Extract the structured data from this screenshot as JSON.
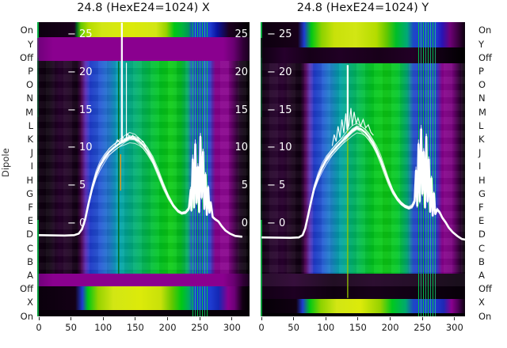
{
  "titles": {
    "left": "24.8 (HexE24=1024) X",
    "right": "24.8 (HexE24=1024) Y"
  },
  "y_axis": {
    "label": "Dipole",
    "rows": [
      "On",
      "Y",
      "Off",
      "P",
      "O",
      "N",
      "M",
      "L",
      "K",
      "J",
      "I",
      "H",
      "G",
      "F",
      "E",
      "D",
      "C",
      "B",
      "A",
      "Off",
      "X",
      "On"
    ]
  },
  "colors": {
    "purple_band": "#8a008f",
    "heat_yellow": "#d2e614",
    "heat_green": "#00c81e",
    "heat_teal": "#00a0aa",
    "heat_blue": "#1e3cd2",
    "heat_dark": "#16001a",
    "curve": "#ffffff",
    "text": "#1a1a1a",
    "background": "#ffffff"
  },
  "chart_data": {
    "type": "heatmap",
    "description": "Two dipole-scan spectrogram panels (X and Y) sharing row categories; each panel is a column-banded heatmap (dark purple / blue / teal / green / yellow) with bright ON/X rows, magenta OFF/Y bands, vertical green stripe artifacts near x=250-270, and an overlaid bundle of white beam-profile traces with a tall narrow spike and a noisy burst region.",
    "x_ticks": [
      0,
      50,
      100,
      150,
      200,
      250,
      300
    ],
    "x_range": [
      0,
      317
    ],
    "inner_y_ticks": {
      "values": [
        25,
        20,
        15,
        10,
        5,
        0
      ],
      "left_labels": [
        "− 25",
        "− 20",
        "− 15",
        "− 10",
        "− 5",
        "− 0"
      ],
      "right_labels": [
        "25",
        "20",
        "15",
        "10",
        "5",
        "0"
      ]
    },
    "rows_top_to_bottom": [
      "On",
      "Y",
      "Off",
      "P",
      "O",
      "N",
      "M",
      "L",
      "K",
      "J",
      "I",
      "H",
      "G",
      "F",
      "E",
      "D",
      "C",
      "B",
      "A",
      "Off",
      "X",
      "On"
    ],
    "panels": [
      {
        "title": "24.8 (HexE24=1024) X",
        "show_inner_right_labels": true,
        "curve": [
          [
            0,
            -1.5
          ],
          [
            40,
            -1.55
          ],
          [
            55,
            -1.5
          ],
          [
            62,
            -1.3
          ],
          [
            67,
            -0.7
          ],
          [
            72,
            0.6
          ],
          [
            77,
            2.6
          ],
          [
            83,
            4.8
          ],
          [
            89,
            6.5
          ],
          [
            95,
            7.7
          ],
          [
            102,
            8.7
          ],
          [
            109,
            9.5
          ],
          [
            117,
            10.1
          ],
          [
            125,
            10.6
          ],
          [
            133,
            11.0
          ],
          [
            141,
            11.4
          ],
          [
            149,
            11.3
          ],
          [
            156,
            10.9
          ],
          [
            162,
            10.4
          ],
          [
            169,
            9.6
          ],
          [
            177,
            8.4
          ],
          [
            185,
            6.8
          ],
          [
            193,
            5.1
          ],
          [
            201,
            3.6
          ],
          [
            209,
            2.4
          ],
          [
            216,
            1.7
          ],
          [
            222,
            1.4
          ],
          [
            228,
            1.5
          ],
          [
            233,
            2.0
          ],
          [
            236,
            4.5
          ],
          [
            237,
            1.8
          ],
          [
            239,
            8.5
          ],
          [
            241,
            2.2
          ],
          [
            243,
            10.5
          ],
          [
            245,
            2.8
          ],
          [
            247,
            7.5
          ],
          [
            249,
            1.6
          ],
          [
            251,
            11.5
          ],
          [
            253,
            3.5
          ],
          [
            255,
            9.5
          ],
          [
            257,
            2.0
          ],
          [
            259,
            6.5
          ],
          [
            261,
            1.2
          ],
          [
            263,
            4.8
          ],
          [
            265,
            1.5
          ],
          [
            267,
            2.8
          ],
          [
            270,
            0.9
          ],
          [
            274,
            0.6
          ],
          [
            279,
            0.3
          ],
          [
            284,
            -0.3
          ],
          [
            290,
            -0.9
          ],
          [
            297,
            -1.3
          ],
          [
            305,
            -1.6
          ],
          [
            316,
            -1.7
          ]
        ],
        "crest_trace": [
          [
            118,
            10.4
          ],
          [
            122,
            11.1
          ],
          [
            126,
            10.7
          ],
          [
            130,
            11.5
          ],
          [
            134,
            11.1
          ],
          [
            138,
            11.9
          ],
          [
            142,
            11.3
          ],
          [
            146,
            11.7
          ],
          [
            150,
            11.1
          ],
          [
            154,
            11.4
          ],
          [
            158,
            10.7
          ],
          [
            162,
            10.9
          ],
          [
            166,
            10.2
          ]
        ],
        "spikes": [
          {
            "x": 129,
            "from": 26.6,
            "to": 10.8
          },
          {
            "x": 136,
            "from": 21.3,
            "to": 11.0
          }
        ],
        "accent_lines": [
          {
            "x": 124,
            "from": 21.5,
            "to": -6.6,
            "color": "#006414"
          },
          {
            "x": 127,
            "from": 9.2,
            "to": 4.4,
            "color": "#ff9600"
          }
        ]
      },
      {
        "title": "24.8 (HexE24=1024) Y",
        "show_inner_right_labels": false,
        "curve": [
          [
            0,
            -1.8
          ],
          [
            45,
            -1.85
          ],
          [
            58,
            -1.8
          ],
          [
            64,
            -1.5
          ],
          [
            68,
            -0.6
          ],
          [
            72,
            0.9
          ],
          [
            77,
            2.9
          ],
          [
            82,
            4.7
          ],
          [
            88,
            6.2
          ],
          [
            94,
            7.4
          ],
          [
            101,
            8.5
          ],
          [
            109,
            9.4
          ],
          [
            117,
            10.2
          ],
          [
            125,
            10.9
          ],
          [
            133,
            11.6
          ],
          [
            141,
            12.3
          ],
          [
            148,
            12.7
          ],
          [
            155,
            12.5
          ],
          [
            161,
            12.1
          ],
          [
            167,
            11.5
          ],
          [
            173,
            10.7
          ],
          [
            179,
            9.7
          ],
          [
            185,
            8.5
          ],
          [
            191,
            7.1
          ],
          [
            197,
            5.7
          ],
          [
            204,
            4.3
          ],
          [
            211,
            3.3
          ],
          [
            217,
            2.7
          ],
          [
            223,
            2.3
          ],
          [
            229,
            2.1
          ],
          [
            234,
            2.3
          ],
          [
            238,
            3.0
          ],
          [
            240,
            7.0
          ],
          [
            242,
            2.4
          ],
          [
            244,
            10.5
          ],
          [
            246,
            3.0
          ],
          [
            248,
            12.5
          ],
          [
            250,
            4.0
          ],
          [
            252,
            9.5
          ],
          [
            254,
            2.2
          ],
          [
            256,
            11.5
          ],
          [
            258,
            3.0
          ],
          [
            260,
            8.5
          ],
          [
            262,
            1.6
          ],
          [
            264,
            6.0
          ],
          [
            266,
            1.1
          ],
          [
            268,
            4.0
          ],
          [
            270,
            1.3
          ],
          [
            273,
            1.9
          ],
          [
            277,
            1.5
          ],
          [
            281,
            0.8
          ],
          [
            286,
            0.2
          ],
          [
            291,
            -0.5
          ],
          [
            297,
            -1.1
          ],
          [
            304,
            -1.6
          ],
          [
            311,
            -2.0
          ],
          [
            317,
            -2.1
          ]
        ],
        "crest_trace": [
          [
            110,
            10.3
          ],
          [
            113,
            11.8
          ],
          [
            116,
            10.9
          ],
          [
            119,
            12.9
          ],
          [
            122,
            11.4
          ],
          [
            125,
            13.8
          ],
          [
            128,
            12.0
          ],
          [
            131,
            14.6
          ],
          [
            133,
            12.4
          ],
          [
            136,
            13.0
          ],
          [
            139,
            15.3
          ],
          [
            141,
            13.0
          ],
          [
            144,
            14.8
          ],
          [
            147,
            13.3
          ],
          [
            150,
            14.0
          ],
          [
            154,
            12.9
          ],
          [
            158,
            13.8
          ],
          [
            162,
            12.7
          ],
          [
            166,
            13.1
          ],
          [
            170,
            12.1
          ],
          [
            174,
            11.7
          ]
        ],
        "spikes": [
          {
            "x": 134,
            "from": 21.0,
            "to": 12.6
          }
        ],
        "accent_lines": [
          {
            "x": 134,
            "from": 14.0,
            "to": -9.8,
            "color": "#96c800"
          }
        ]
      }
    ]
  }
}
